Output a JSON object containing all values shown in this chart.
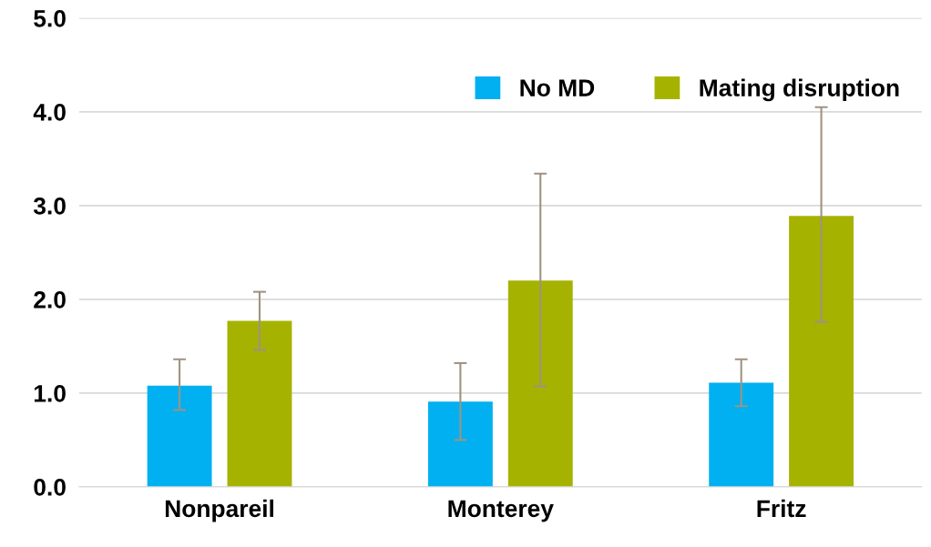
{
  "chart_data": {
    "type": "bar",
    "categories": [
      "Nonpareil",
      "Monterey",
      "Fritz"
    ],
    "series": [
      {
        "name": "No MD",
        "color": "#00b0f0",
        "values": [
          1.08,
          0.91,
          1.11
        ],
        "errors": [
          [
            0.82,
            1.36
          ],
          [
            0.5,
            1.32
          ],
          [
            0.86,
            1.36
          ]
        ]
      },
      {
        "name": "Mating disruption",
        "color": "#a5b300",
        "values": [
          1.77,
          2.2,
          2.89
        ],
        "errors": [
          [
            1.46,
            2.08
          ],
          [
            1.07,
            3.34
          ],
          [
            1.76,
            4.05
          ]
        ]
      }
    ],
    "ylim": [
      0,
      5
    ],
    "yticks": [
      {
        "value": 0,
        "label": "0.0"
      },
      {
        "value": 1,
        "label": "1.0"
      },
      {
        "value": 2,
        "label": "2.0"
      },
      {
        "value": 3,
        "label": "3.0"
      },
      {
        "value": 4,
        "label": "4.0"
      },
      {
        "value": 5,
        "label": "5.0"
      }
    ],
    "grid": "y",
    "legend": "top right"
  }
}
